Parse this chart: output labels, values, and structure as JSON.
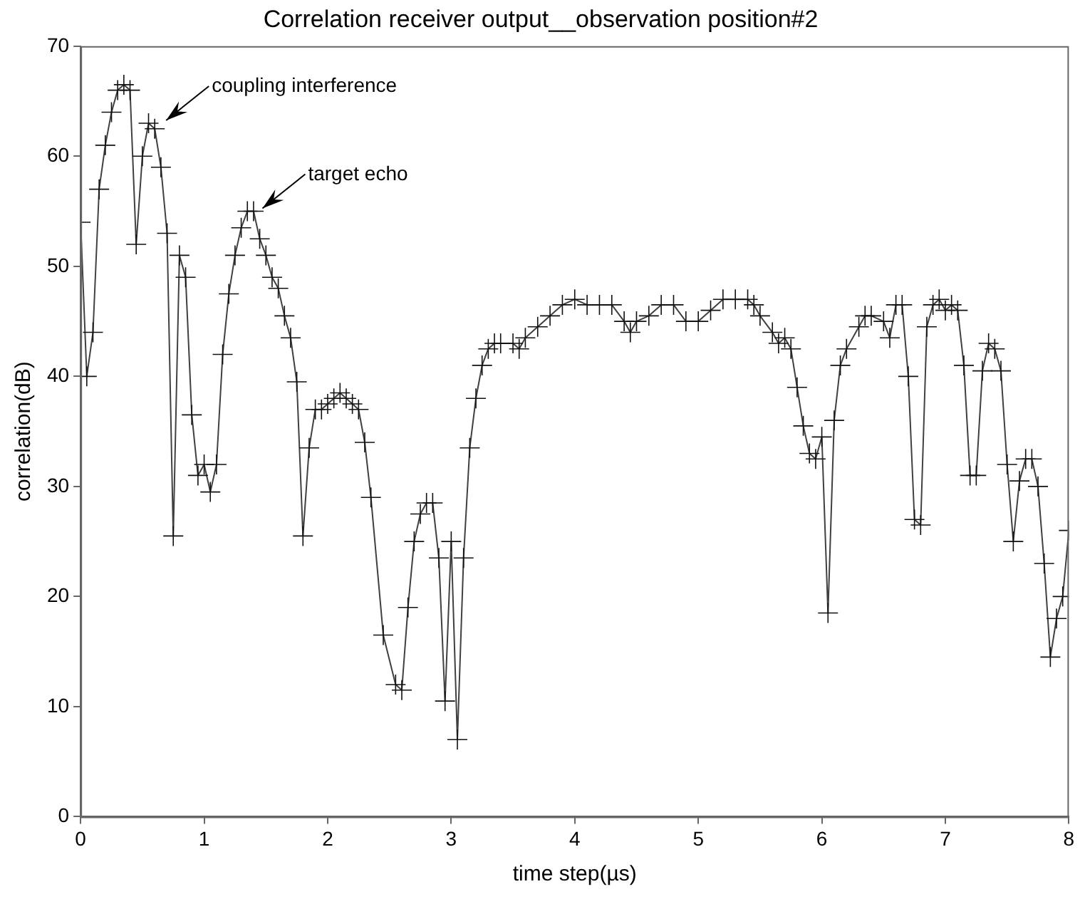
{
  "chart_data": {
    "type": "line",
    "title": "Correlation receiver output__observation position#2",
    "xlabel": "time step(µs)",
    "ylabel": "correlation(dB)",
    "x": [
      0,
      0.05,
      0.1,
      0.15,
      0.2,
      0.25,
      0.3,
      0.35,
      0.4,
      0.45,
      0.5,
      0.55,
      0.6,
      0.65,
      0.7,
      0.75,
      0.8,
      0.85,
      0.9,
      0.95,
      1.0,
      1.05,
      1.1,
      1.15,
      1.2,
      1.25,
      1.3,
      1.35,
      1.4,
      1.45,
      1.5,
      1.55,
      1.6,
      1.65,
      1.7,
      1.75,
      1.8,
      1.85,
      1.9,
      1.95,
      2.0,
      2.05,
      2.1,
      2.15,
      2.2,
      2.25,
      2.3,
      2.35,
      2.45,
      2.55,
      2.6,
      2.65,
      2.7,
      2.75,
      2.8,
      2.85,
      2.9,
      2.95,
      3.0,
      3.05,
      3.1,
      3.15,
      3.2,
      3.25,
      3.3,
      3.35,
      3.4,
      3.5,
      3.55,
      3.6,
      3.7,
      3.8,
      3.9,
      4.0,
      4.1,
      4.2,
      4.3,
      4.4,
      4.45,
      4.5,
      4.6,
      4.7,
      4.8,
      4.9,
      5.0,
      5.1,
      5.2,
      5.3,
      5.4,
      5.45,
      5.5,
      5.6,
      5.65,
      5.7,
      5.75,
      5.8,
      5.85,
      5.9,
      5.95,
      6.0,
      6.05,
      6.1,
      6.15,
      6.2,
      6.3,
      6.35,
      6.4,
      6.5,
      6.55,
      6.6,
      6.65,
      6.7,
      6.75,
      6.8,
      6.85,
      6.9,
      6.95,
      7.0,
      7.05,
      7.1,
      7.15,
      7.2,
      7.25,
      7.3,
      7.35,
      7.4,
      7.45,
      7.5,
      7.55,
      7.6,
      7.65,
      7.7,
      7.75,
      7.8,
      7.85,
      7.9,
      7.95,
      8.0
    ],
    "series": [
      {
        "color": "#404040",
        "values": [
          54,
          40,
          44,
          57,
          61,
          64,
          66,
          66.5,
          66,
          52,
          60,
          63,
          62.5,
          59,
          53,
          25.5,
          51,
          49,
          36.5,
          31,
          32,
          29.5,
          32,
          42,
          47.5,
          51,
          53.5,
          55,
          55,
          52.5,
          51,
          49,
          48,
          45.5,
          43.5,
          39.5,
          25.5,
          33.5,
          37,
          37,
          37.5,
          38,
          38.5,
          38,
          37.5,
          37,
          34,
          29,
          16.5,
          12,
          11.5,
          19,
          25,
          27.5,
          28.5,
          28.5,
          23.5,
          10.5,
          25,
          7,
          23.5,
          33.5,
          38,
          41,
          42.5,
          43,
          43,
          43,
          42.5,
          43.5,
          44.5,
          45.5,
          46.5,
          47,
          46.5,
          46.5,
          46.5,
          45,
          44,
          45,
          45.5,
          46.5,
          46.5,
          45,
          45,
          46,
          47,
          47,
          47,
          46.5,
          45.5,
          44,
          43,
          43.5,
          42.5,
          39,
          35.5,
          33,
          32.5,
          34.5,
          18.5,
          36,
          41,
          42.5,
          44.5,
          45.5,
          45.5,
          45,
          43.5,
          46.5,
          46.5,
          40,
          27,
          26.5,
          44.5,
          46.5,
          47,
          46,
          46.5,
          46,
          41,
          31,
          31,
          40.5,
          43,
          42.5,
          40.5,
          32,
          25,
          30.5,
          32.5,
          32.5,
          30,
          23,
          14.5,
          18,
          20,
          26
        ]
      }
    ],
    "xlim": [
      0,
      8
    ],
    "xticks": [
      0,
      1,
      2,
      3,
      4,
      5,
      6,
      7,
      8
    ],
    "ylim": [
      0,
      70
    ],
    "yticks": [
      0,
      10,
      20,
      30,
      40,
      50,
      60,
      70
    ],
    "marker": "cross",
    "line_style": "solid",
    "grid": false,
    "legend": false,
    "annotations": [
      {
        "text": "coupling interference",
        "x": 0.6,
        "y": 63
      },
      {
        "text": "target echo",
        "x": 1.38,
        "y": 55
      }
    ]
  }
}
